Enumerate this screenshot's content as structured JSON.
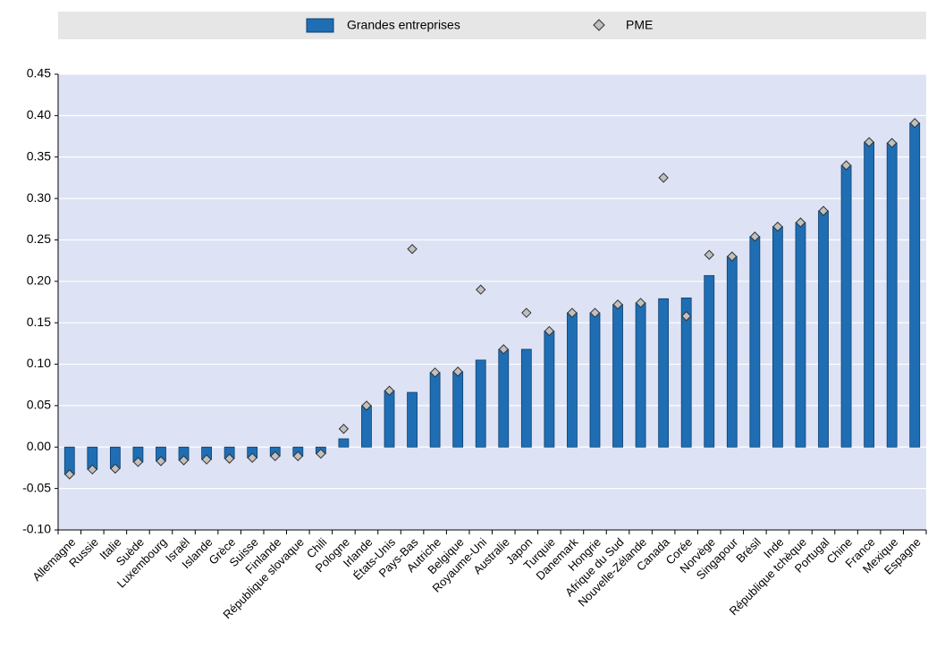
{
  "chart_data": {
    "type": "bar",
    "categories": [
      "Allemagne",
      "Russie",
      "Italie",
      "Suède",
      "Luxembourg",
      "Israël",
      "Islande",
      "Grèce",
      "Suisse",
      "Finlande",
      "République slovaque",
      "Chili",
      "Pologne",
      "Irlande",
      "États-Unis",
      "Pays-Bas",
      "Autriche",
      "Belgique",
      "Royaume-Uni",
      "Australie",
      "Japon",
      "Turquie",
      "Danemark",
      "Hongrie",
      "Afrique du Sud",
      "Nouvelle-Zélande",
      "Canada",
      "Corée",
      "Norvège",
      "Singapour",
      "Brésil",
      "Inde",
      "République tchèque",
      "Portugal",
      "Chine",
      "France",
      "Mexique",
      "Espagne"
    ],
    "series": [
      {
        "name": "Grandes entreprises",
        "type": "bar",
        "color": "#1f6eb4",
        "values": [
          -0.033,
          -0.027,
          -0.026,
          -0.018,
          -0.017,
          -0.016,
          -0.015,
          -0.014,
          -0.013,
          -0.011,
          -0.011,
          -0.008,
          0.01,
          0.05,
          0.068,
          0.066,
          0.09,
          0.091,
          0.105,
          0.118,
          0.118,
          0.14,
          0.162,
          0.162,
          0.172,
          0.174,
          0.179,
          0.18,
          0.207,
          0.23,
          0.254,
          0.266,
          0.271,
          0.285,
          0.34,
          0.368,
          0.367,
          0.391
        ]
      },
      {
        "name": "PME",
        "type": "scatter",
        "marker": "diamond",
        "color": "#c0c0c0",
        "values": [
          -0.033,
          -0.027,
          -0.026,
          -0.018,
          -0.017,
          -0.016,
          -0.015,
          -0.014,
          -0.013,
          -0.011,
          -0.011,
          -0.008,
          0.022,
          0.05,
          0.068,
          0.239,
          0.09,
          0.091,
          0.19,
          0.118,
          0.162,
          0.14,
          0.162,
          0.162,
          0.172,
          0.174,
          0.325,
          0.158,
          0.232,
          0.23,
          0.254,
          0.266,
          0.271,
          0.285,
          0.34,
          0.368,
          0.367,
          0.391
        ]
      }
    ],
    "ylim": [
      -0.1,
      0.45
    ],
    "yticks": [
      {
        "value": -0.1,
        "label": "-0.10"
      },
      -0.05,
      {
        "value": 0,
        "label": "0.00"
      },
      0.05,
      {
        "value": 0.1,
        "label": "0.10"
      },
      0.15,
      {
        "value": 0.2,
        "label": "0.20"
      },
      0.25,
      {
        "value": 0.3,
        "label": "0.30"
      },
      0.35,
      {
        "value": 0.4,
        "label": "0.40"
      },
      0.45
    ],
    "grid": true,
    "legend": "top"
  }
}
